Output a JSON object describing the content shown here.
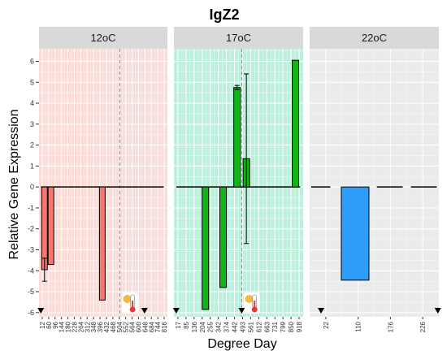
{
  "chart_data": {
    "type": "bar",
    "title": "IgZ2",
    "xlabel": "Degree Day",
    "ylabel": "Relative Gene Expression",
    "ylim": [
      -6.2,
      6.6
    ],
    "yticks": [
      -6,
      -5,
      -4,
      -3,
      -2,
      -1,
      0,
      1,
      2,
      3,
      4,
      5,
      6
    ],
    "grid": true,
    "legend": "none",
    "panels": [
      {
        "label": "12oC",
        "background": "#f9dcd8",
        "bar_color": "#f8766d",
        "xlim": [
          0,
          840
        ],
        "xticks": [
          "12",
          "60",
          "96",
          "144",
          "180",
          "228",
          "264",
          "312",
          "348",
          "396",
          "432",
          "468",
          "504",
          "552",
          "564",
          "600",
          "648",
          "684",
          "744",
          "816"
        ],
        "bars": [
          {
            "x": 36,
            "value": -3.95,
            "error": 0.55
          },
          {
            "x": 78,
            "value": -3.7,
            "error": 0
          },
          {
            "x": 414,
            "value": -5.4,
            "error": 0
          }
        ],
        "zero_segments": [
          [
            12,
            816
          ]
        ],
        "vline_x": 528,
        "thermometer_x": 588,
        "markers": [
          12,
          690
        ]
      },
      {
        "label": "17oC",
        "background": "#bdf0dc",
        "bar_color": "#11b515",
        "xlim": [
          0,
          940
        ],
        "xticks": [
          "17",
          "85",
          "136",
          "204",
          "255",
          "342",
          "374",
          "442",
          "493",
          "561",
          "612",
          "663",
          "731",
          "799",
          "850",
          "918"
        ],
        "bars": [
          {
            "x": 229,
            "value": -5.85,
            "error": 0
          },
          {
            "x": 358,
            "value": -4.8,
            "error": 0
          },
          {
            "x": 459,
            "value": 4.75,
            "error": 0.1
          },
          {
            "x": 527,
            "value": 1.35,
            "error": 4.05
          },
          {
            "x": 884,
            "value": 6.05,
            "error": 0
          }
        ],
        "zero_segments": [
          [
            17,
            918
          ]
        ],
        "vline_x": 493,
        "thermometer_x": 560,
        "markers": [
          17,
          493
        ]
      },
      {
        "label": "22oC",
        "background": "#ebebeb",
        "bar_color": "#2f9dfc",
        "xlim": [
          0,
          250
        ],
        "xticks": [
          "22",
          "110",
          "176",
          "226"
        ],
        "bars": [
          {
            "x": 88,
            "value": -4.45,
            "error": 0
          }
        ],
        "zero_segments": [
          [
            3,
            40
          ],
          [
            130,
            180
          ],
          [
            196,
            246
          ]
        ],
        "markers": [
          22,
          248
        ]
      }
    ]
  }
}
